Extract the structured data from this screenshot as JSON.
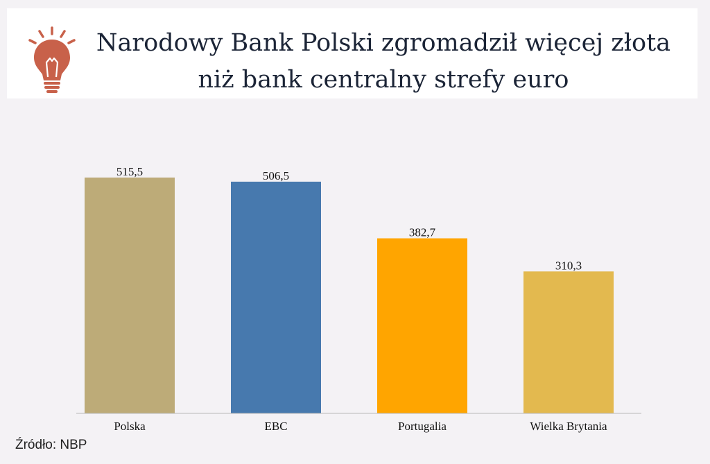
{
  "header": {
    "title_line1": "Narodowy Bank Polski zgromadził więcej złota",
    "title_line2": "niż bank centralny strefy euro",
    "icon": "lightbulb-icon",
    "icon_color": "#c8614a"
  },
  "chart_data": {
    "type": "bar",
    "categories": [
      "Polska",
      "EBC",
      "Portugalia",
      "Wielka Brytania"
    ],
    "values": [
      515.5,
      506.5,
      382.7,
      310.3
    ],
    "value_labels": [
      "515,5",
      "506,5",
      "382,7",
      "310,3"
    ],
    "colors": [
      "#bdab78",
      "#4779ae",
      "#ffa500",
      "#e3b94f"
    ],
    "ylim": [
      0,
      600
    ],
    "grid": false,
    "legend": "none"
  },
  "footer": {
    "source": "Źródło: NBP"
  }
}
